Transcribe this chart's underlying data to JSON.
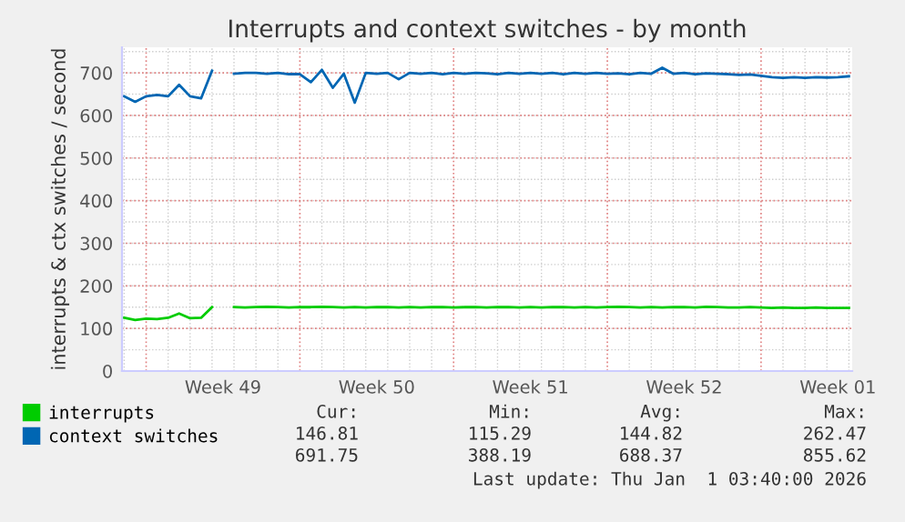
{
  "chart_data": {
    "type": "line",
    "title": "Interrupts and context switches - by month",
    "ylabel": "interrupts & ctx switches / second",
    "categories": [
      null,
      null,
      null,
      null,
      null,
      null,
      null,
      null,
      null,
      "Week 49",
      null,
      null,
      null,
      null,
      null,
      null,
      null,
      null,
      null,
      null,
      null,
      null,
      null,
      "Week 50",
      null,
      null,
      null,
      null,
      null,
      null,
      null,
      null,
      null,
      null,
      null,
      null,
      null,
      "Week 51",
      null,
      null,
      null,
      null,
      null,
      null,
      null,
      null,
      null,
      null,
      null,
      null,
      null,
      "Week 52",
      null,
      null,
      null,
      null,
      null,
      null,
      null,
      null,
      null,
      null,
      null,
      null,
      null,
      "Week 01",
      null
    ],
    "ylim": [
      0,
      760
    ],
    "yticks": [
      0,
      100,
      200,
      300,
      400,
      500,
      600,
      700
    ],
    "grid": true,
    "legend": "bottom left",
    "marker": "none",
    "line_style": "solid",
    "series": [
      {
        "name": "interrupts",
        "color": "#00cc00",
        "values": [
          125,
          120,
          123,
          122,
          125,
          135,
          124,
          125,
          150,
          null,
          150,
          149,
          150,
          151,
          150,
          149,
          150,
          150,
          151,
          150,
          149,
          150,
          149,
          150,
          150,
          149,
          150,
          149,
          150,
          150,
          149,
          150,
          150,
          149,
          150,
          150,
          149,
          150,
          149,
          150,
          150,
          149,
          150,
          149,
          150,
          151,
          150,
          149,
          150,
          149,
          150,
          150,
          149,
          151,
          150,
          149,
          149,
          150,
          149,
          148,
          149,
          148,
          148,
          149,
          148,
          148,
          148
        ]
      },
      {
        "name": "context switches",
        "color": "#0066b3",
        "values": [
          645,
          632,
          645,
          648,
          645,
          672,
          645,
          640,
          705,
          null,
          698,
          700,
          700,
          698,
          700,
          697,
          697,
          678,
          707,
          665,
          698,
          630,
          700,
          698,
          700,
          685,
          700,
          698,
          700,
          697,
          700,
          698,
          700,
          699,
          697,
          700,
          698,
          700,
          698,
          700,
          697,
          700,
          698,
          700,
          698,
          699,
          697,
          700,
          698,
          712,
          698,
          700,
          697,
          699,
          698,
          697,
          695,
          696,
          693,
          690,
          688,
          690,
          688,
          690,
          689,
          690,
          692
        ]
      }
    ],
    "annotations": [
      "Cur:",
      "Min:",
      "Avg:",
      "Max:",
      "146.81",
      "115.29",
      "144.82",
      "262.47",
      "691.75",
      "388.19",
      "688.37",
      "855.62",
      "Last update: Thu Jan  1 03:40:00 2026"
    ]
  }
}
